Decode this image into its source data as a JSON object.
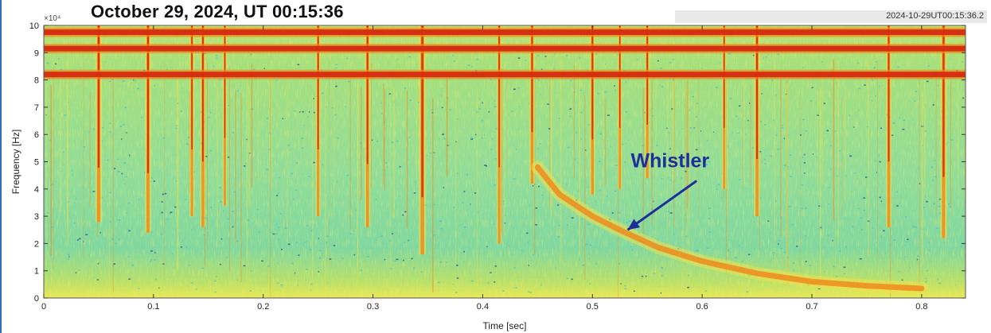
{
  "header": {
    "title": "October 29, 2024, UT 00:15:36",
    "stamp": "2024-10-29UT00:15:36.2"
  },
  "chart_data": {
    "type": "heatmap",
    "subtype": "spectrogram",
    "title": "October 29, 2024, UT 00:15:36",
    "xlabel": "Time [sec]",
    "ylabel": "Frequency [Hz]",
    "y_exponent_label": "×10⁴",
    "xlim": [
      0,
      0.84
    ],
    "ylim": [
      0,
      100000
    ],
    "x_ticks": [
      0,
      0.1,
      0.2,
      0.3,
      0.4,
      0.5,
      0.6,
      0.7,
      0.8
    ],
    "x_tick_labels": [
      "0",
      "0.1",
      "0.2",
      "0.3",
      "0.4",
      "0.5",
      "0.6",
      "0.7",
      "0.8"
    ],
    "y_ticks": [
      0,
      10000,
      20000,
      30000,
      40000,
      50000,
      60000,
      70000,
      80000,
      90000,
      100000
    ],
    "y_tick_labels": [
      "0",
      "1",
      "2",
      "3",
      "4",
      "5",
      "6",
      "7",
      "8",
      "9",
      "10"
    ],
    "colormap": "jet",
    "colors": {
      "background": "#8fdc9a",
      "strong": "#d42a10",
      "medium": "#f08a1c",
      "weak": "#f2e04a",
      "low": "#2bb6d8",
      "annotation": "#1f2f9a"
    },
    "narrowband_lines_hz": [
      97500,
      91500,
      82000
    ],
    "impulsive_events": [
      {
        "t": 0.05,
        "strength": 0.9,
        "f_low": 28000
      },
      {
        "t": 0.095,
        "strength": 0.85,
        "f_low": 24000
      },
      {
        "t": 0.135,
        "strength": 0.6,
        "f_low": 30000
      },
      {
        "t": 0.145,
        "strength": 0.7,
        "f_low": 26000
      },
      {
        "t": 0.165,
        "strength": 0.5,
        "f_low": 34000
      },
      {
        "t": 0.25,
        "strength": 0.6,
        "f_low": 30000
      },
      {
        "t": 0.295,
        "strength": 0.75,
        "f_low": 26000
      },
      {
        "t": 0.345,
        "strength": 1.0,
        "f_low": 16000
      },
      {
        "t": 0.415,
        "strength": 0.6,
        "f_low": 20000
      },
      {
        "t": 0.445,
        "strength": 0.7,
        "f_low": 42000
      },
      {
        "t": 0.5,
        "strength": 0.7,
        "f_low": 38000
      },
      {
        "t": 0.525,
        "strength": 0.5,
        "f_low": 40000
      },
      {
        "t": 0.55,
        "strength": 0.6,
        "f_low": 44000
      },
      {
        "t": 0.62,
        "strength": 0.5,
        "f_low": 40000
      },
      {
        "t": 0.65,
        "strength": 0.8,
        "f_low": 30000
      },
      {
        "t": 0.77,
        "strength": 0.7,
        "f_low": 26000
      },
      {
        "t": 0.82,
        "strength": 0.85,
        "f_low": 22000
      }
    ],
    "whistler_trace": [
      {
        "t": 0.45,
        "f": 48000
      },
      {
        "t": 0.47,
        "f": 38000
      },
      {
        "t": 0.5,
        "f": 30000
      },
      {
        "t": 0.53,
        "f": 24000
      },
      {
        "t": 0.56,
        "f": 18500
      },
      {
        "t": 0.6,
        "f": 13500
      },
      {
        "t": 0.65,
        "f": 9000
      },
      {
        "t": 0.7,
        "f": 6000
      },
      {
        "t": 0.75,
        "f": 4500
      },
      {
        "t": 0.8,
        "f": 3500
      }
    ],
    "annotation": {
      "text": "Whistler",
      "text_t": 0.535,
      "text_f": 48000,
      "arrow_from_t": 0.595,
      "arrow_from_f": 43000,
      "arrow_to_t": 0.532,
      "arrow_to_f": 25000
    }
  }
}
